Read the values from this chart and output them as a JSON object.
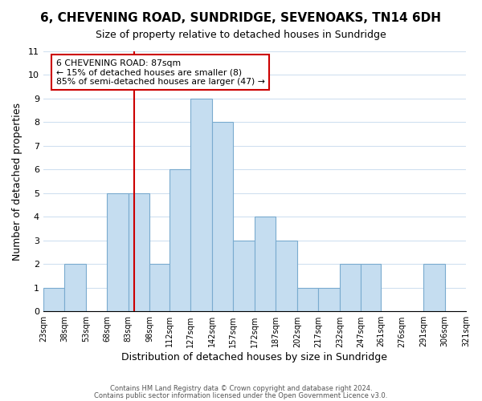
{
  "title": "6, CHEVENING ROAD, SUNDRIDGE, SEVENOAKS, TN14 6DH",
  "subtitle": "Size of property relative to detached houses in Sundridge",
  "xlabel": "Distribution of detached houses by size in Sundridge",
  "ylabel": "Number of detached properties",
  "bar_color": "#c5ddf0",
  "bar_edge_color": "#7aabcf",
  "grid_color": "#d0e0f0",
  "reference_line_x": 87,
  "reference_line_color": "#cc0000",
  "bin_edges": [
    23,
    38,
    53,
    68,
    83,
    98,
    112,
    127,
    142,
    157,
    172,
    187,
    202,
    217,
    232,
    247,
    261,
    276,
    291,
    306,
    321
  ],
  "bin_labels": [
    "23sqm",
    "38sqm",
    "53sqm",
    "68sqm",
    "83sqm",
    "98sqm",
    "112sqm",
    "127sqm",
    "142sqm",
    "157sqm",
    "172sqm",
    "187sqm",
    "202sqm",
    "217sqm",
    "232sqm",
    "247sqm",
    "261sqm",
    "276sqm",
    "291sqm",
    "306sqm",
    "321sqm"
  ],
  "bar_heights": [
    1,
    2,
    0,
    5,
    5,
    2,
    6,
    9,
    8,
    3,
    4,
    3,
    1,
    1,
    2,
    2,
    0,
    0,
    2,
    0
  ],
  "ylim": [
    0,
    11
  ],
  "yticks": [
    0,
    1,
    2,
    3,
    4,
    5,
    6,
    7,
    8,
    9,
    10,
    11
  ],
  "annotation_line1": "6 CHEVENING ROAD: 87sqm",
  "annotation_line2": "← 15% of detached houses are smaller (8)",
  "annotation_line3": "85% of semi-detached houses are larger (47) →",
  "footer1": "Contains HM Land Registry data © Crown copyright and database right 2024.",
  "footer2": "Contains public sector information licensed under the Open Government Licence v3.0.",
  "background_color": "#ffffff"
}
